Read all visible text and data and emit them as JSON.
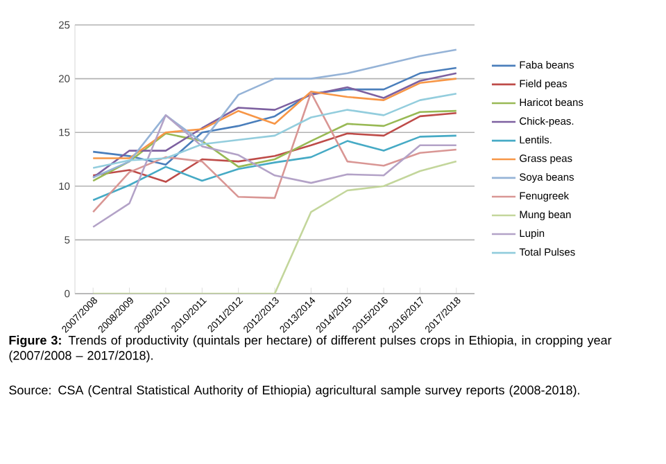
{
  "chart_data": {
    "type": "line",
    "title": "**Figure 3:** Trends of productivity (quintals per hectare) of different pulses crops in Ethiopia, in cropping year (2007/2008 – 2017/2018).",
    "annotations": [
      "Source: CSA (Central Statistical Authority of Ethiopia) agricultural sample survey reports (2008-2018)."
    ],
    "categories": [
      "2007/2008",
      "2008/2009",
      "2009/2010",
      "2010/2011",
      "2011/2012",
      "2012/2013",
      "2013/2014",
      "2014/2015",
      "2015/2016",
      "2016/2017",
      "2017/2018"
    ],
    "series": [
      {
        "name": "Faba beans",
        "color": "#4a7ebb",
        "values": [
          13.2,
          12.8,
          12.0,
          15.0,
          15.6,
          16.5,
          18.6,
          19.0,
          19.0,
          20.5,
          21.0
        ]
      },
      {
        "name": "Field peas",
        "color": "#be4b48",
        "values": [
          11.0,
          11.5,
          10.4,
          12.5,
          12.3,
          12.8,
          13.8,
          14.9,
          14.7,
          16.5,
          16.8
        ]
      },
      {
        "name": "Haricot beans",
        "color": "#98b954",
        "values": [
          10.5,
          12.3,
          14.9,
          14.2,
          11.8,
          12.5,
          14.2,
          15.8,
          15.6,
          16.9,
          17.0
        ]
      },
      {
        "name": "Chick-peas.",
        "color": "#7d60a0",
        "values": [
          10.8,
          13.3,
          13.3,
          15.4,
          17.3,
          17.1,
          18.5,
          19.2,
          18.2,
          19.8,
          20.5
        ]
      },
      {
        "name": "Lentils.",
        "color": "#46aac5",
        "values": [
          8.7,
          10.1,
          11.8,
          10.5,
          11.6,
          12.2,
          12.7,
          14.2,
          13.3,
          14.6,
          14.7
        ]
      },
      {
        "name": "Grass peas",
        "color": "#f79646",
        "values": [
          12.6,
          12.6,
          15.0,
          15.3,
          17.0,
          15.8,
          18.8,
          18.3,
          18.0,
          19.6,
          20.0
        ]
      },
      {
        "name": "Soya beans",
        "color": "#95b3d7",
        "values": [
          10.8,
          12.3,
          16.6,
          14.1,
          18.5,
          20.0,
          20.0,
          20.5,
          21.3,
          22.1,
          22.7
        ]
      },
      {
        "name": "Fenugreek",
        "color": "#d99694",
        "values": [
          7.6,
          11.3,
          12.7,
          12.3,
          9.0,
          8.9,
          18.7,
          12.3,
          11.9,
          13.1,
          13.4
        ]
      },
      {
        "name": "Mung bean",
        "color": "#c3d69b",
        "values": [
          0,
          0,
          0,
          0,
          0,
          0,
          7.6,
          9.6,
          10.0,
          11.4,
          12.3
        ]
      },
      {
        "name": "Lupin",
        "color": "#b3a2c7",
        "values": [
          6.2,
          8.4,
          16.6,
          13.7,
          12.9,
          11.0,
          10.3,
          11.1,
          11.0,
          13.8,
          13.8
        ]
      },
      {
        "name": "Total Pulses",
        "color": "#93cddd",
        "values": [
          11.7,
          12.4,
          12.6,
          13.9,
          14.3,
          14.7,
          16.4,
          17.1,
          16.6,
          18.0,
          18.6
        ]
      }
    ],
    "ylim": [
      0,
      25
    ],
    "yticks": [
      0,
      5,
      10,
      15,
      20,
      25
    ],
    "grid": "y",
    "legend": "right",
    "marker": "none",
    "line_style": "solid"
  }
}
